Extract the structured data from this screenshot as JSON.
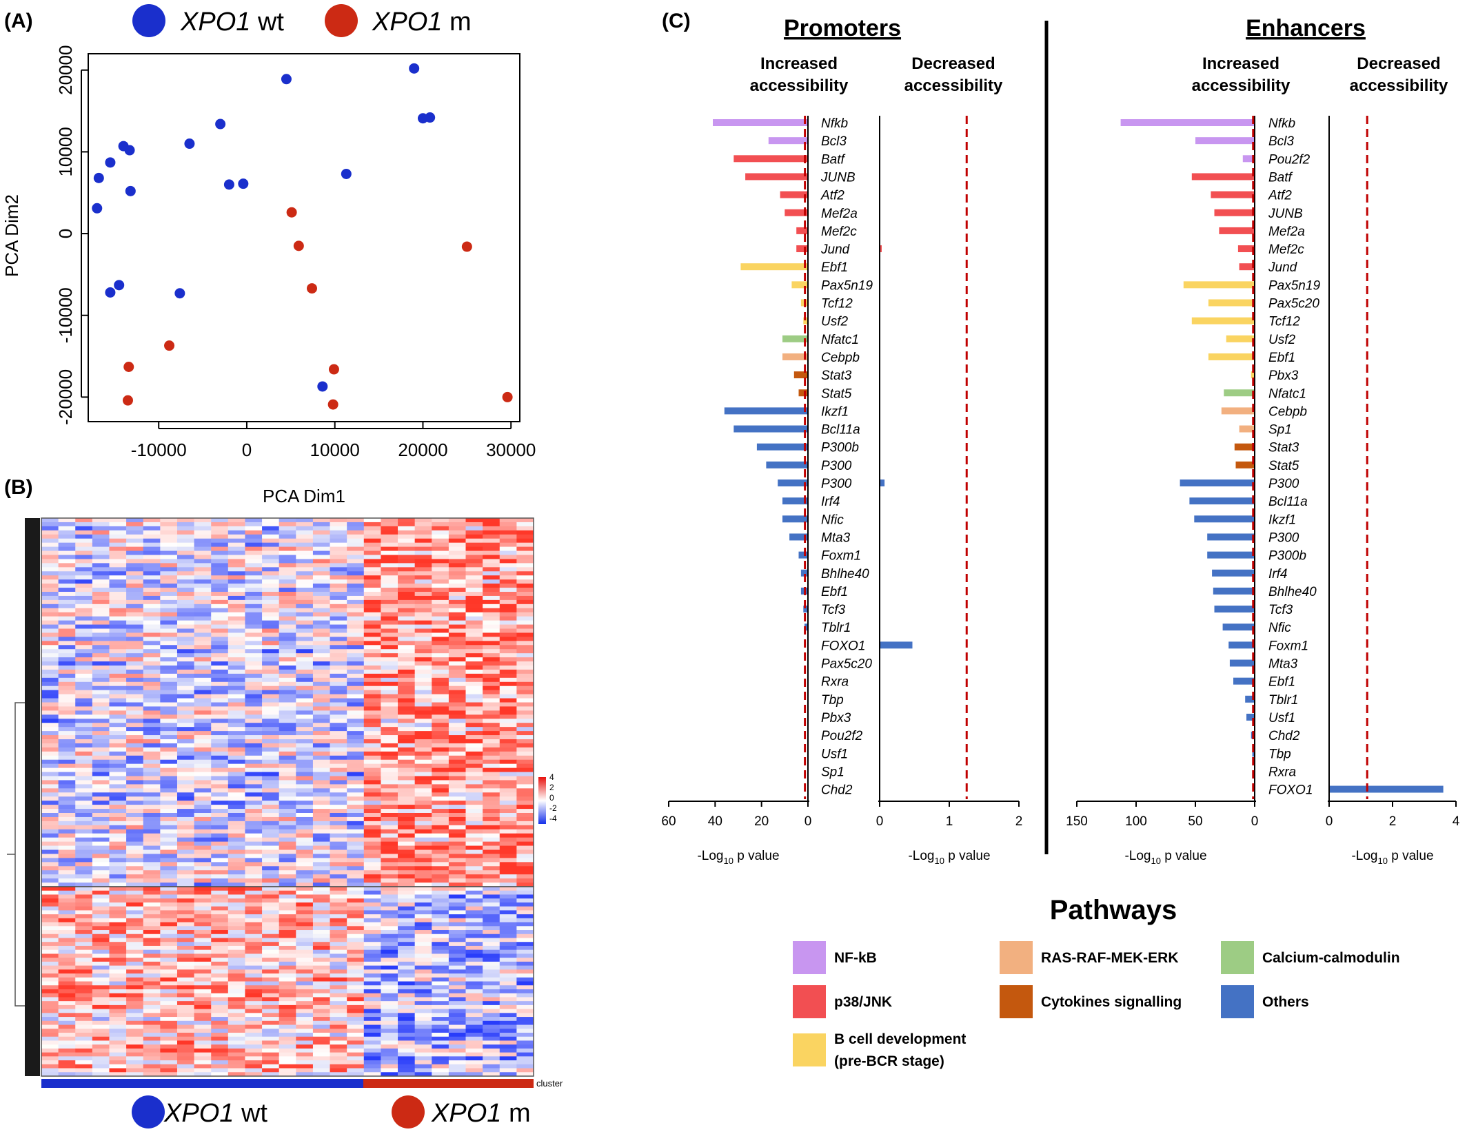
{
  "panels": {
    "a": "(A)",
    "b": "(B)",
    "c": "(C)"
  },
  "groups": {
    "wt": {
      "gene": "XPO1",
      "suffix": " wt",
      "color": "#1a2fcc"
    },
    "m": {
      "gene": "XPO1",
      "suffix": " m",
      "color": "#cc2a14"
    }
  },
  "pca": {
    "xlabel": "PCA Dim1",
    "ylabel": "PCA Dim2",
    "xticks": [
      -10000,
      0,
      10000,
      20000,
      30000
    ],
    "yticks": [
      -20000,
      -10000,
      0,
      10000,
      20000
    ]
  },
  "heatmap": {
    "scale_ticks": [
      "4",
      "2",
      "0",
      "-2",
      "-4"
    ],
    "cluster_label": "cluster"
  },
  "c_axis_label": "-Log",
  "c_axis_sub": "10",
  "c_axis_label_tail": " p value",
  "c_headers": {
    "increased": [
      "Increased",
      "accessibility"
    ],
    "decreased": [
      "Decreased",
      "accessibility"
    ]
  },
  "legend": {
    "title": "Pathways",
    "items": [
      {
        "key": "nfkb",
        "label": "NF-kB",
        "color": "#c896f0"
      },
      {
        "key": "ras",
        "label": "RAS-RAF-MEK-ERK",
        "color": "#f2b080"
      },
      {
        "key": "calcium",
        "label": "Calcium-calmodulin",
        "color": "#9dcc84"
      },
      {
        "key": "p38",
        "label": "p38/JNK",
        "color": "#f24f52"
      },
      {
        "key": "cyt",
        "label": "Cytokines signalling",
        "color": "#c4580e"
      },
      {
        "key": "others",
        "label": "Others",
        "color": "#4472c4"
      },
      {
        "key": "bcell",
        "label": "B cell development",
        "label2": "(pre-BCR stage)",
        "color": "#fad461"
      }
    ]
  },
  "chart_data": [
    {
      "type": "scatter",
      "panel": "A",
      "xlabel": "PCA Dim1",
      "ylabel": "PCA Dim2",
      "xlim": [
        -18000,
        31000
      ],
      "ylim": [
        -23000,
        22000
      ],
      "series": [
        {
          "name": "XPO1 wt",
          "points": [
            [
              -16800,
              6800
            ],
            [
              -17000,
              3100
            ],
            [
              -15500,
              8700
            ],
            [
              -14000,
              10700
            ],
            [
              -13300,
              10200
            ],
            [
              -13200,
              5200
            ],
            [
              -6500,
              11000
            ],
            [
              -3000,
              13400
            ],
            [
              -2000,
              6000
            ],
            [
              -400,
              6100
            ],
            [
              4500,
              18900
            ],
            [
              11300,
              7300
            ],
            [
              19000,
              20200
            ],
            [
              20000,
              14100
            ],
            [
              20800,
              14200
            ],
            [
              -15500,
              -7200
            ],
            [
              -14500,
              -6300
            ],
            [
              -7600,
              -7300
            ],
            [
              8600,
              -18700
            ]
          ]
        },
        {
          "name": "XPO1 m",
          "points": [
            [
              5100,
              2600
            ],
            [
              5900,
              -1500
            ],
            [
              7400,
              -6700
            ],
            [
              25000,
              -1600
            ],
            [
              -8800,
              -13700
            ],
            [
              -13400,
              -16300
            ],
            [
              9900,
              -16600
            ],
            [
              -13500,
              -20400
            ],
            [
              9800,
              -20900
            ],
            [
              29600,
              -20000
            ]
          ]
        }
      ]
    },
    {
      "type": "heatmap",
      "panel": "B",
      "scale": [
        -4,
        4
      ],
      "columns": {
        "XPO1 wt": 19,
        "XPO1 m": 10
      },
      "clusters": 2
    },
    {
      "type": "bar",
      "panel": "C",
      "title": "Promoters",
      "categories": [
        "Nfkb",
        "Bcl3",
        "Batf",
        "JUNB",
        "Atf2",
        "Mef2a",
        "Mef2c",
        "Jund",
        "Ebf1",
        "Pax5n19",
        "Tcf12",
        "Usf2",
        "Nfatc1",
        "Cebpb",
        "Stat3",
        "Stat5",
        "Ikzf1",
        "Bcl11a",
        "P300b",
        "P300",
        "P300",
        "Irf4",
        "Nfic",
        "Mta3",
        "Foxm1",
        "Bhlhe40",
        "Ebf1",
        "Tcf3",
        "Tblr1",
        "FOXO1",
        "Pax5c20",
        "Rxra",
        "Tbp",
        "Pbx3",
        "Pou2f2",
        "Usf1",
        "Sp1",
        "Chd2"
      ],
      "pathway": [
        "nfkb",
        "nfkb",
        "p38",
        "p38",
        "p38",
        "p38",
        "p38",
        "p38",
        "bcell",
        "bcell",
        "bcell",
        "bcell",
        "calcium",
        "ras",
        "cyt",
        "cyt",
        "others",
        "others",
        "others",
        "others",
        "others",
        "others",
        "others",
        "others",
        "others",
        "others",
        "others",
        "others",
        "others",
        "others",
        "bcell",
        "others",
        "others",
        "others",
        "nfkb",
        "others",
        "others",
        "others"
      ],
      "increased": [
        41,
        17,
        32,
        27,
        12,
        10,
        5,
        5,
        29,
        7,
        3,
        2,
        11,
        11,
        6,
        4,
        36,
        32,
        22,
        18,
        13,
        11,
        11,
        8,
        4,
        3,
        3,
        2,
        1.5,
        0,
        0,
        0,
        0,
        0,
        0,
        0,
        0,
        0
      ],
      "decreased": [
        0,
        0,
        0,
        0,
        0,
        0,
        0,
        0.03,
        0,
        0,
        0,
        0,
        0,
        0,
        0,
        0,
        0,
        0,
        0,
        0,
        0.07,
        0,
        0,
        0,
        0,
        0,
        0,
        0,
        0,
        0.47,
        0,
        0,
        0,
        0,
        0,
        0,
        0,
        0
      ],
      "increased_xlim": [
        0,
        60
      ],
      "increased_xticks": [
        60,
        40,
        20,
        0
      ],
      "decreased_xlim": [
        0,
        2
      ],
      "decreased_xticks": [
        0,
        1,
        2
      ],
      "threshold_increased": 1.3,
      "threshold_decreased": 1.25
    },
    {
      "type": "bar",
      "panel": "C",
      "title": "Enhancers",
      "categories": [
        "Nfkb",
        "Bcl3",
        "Pou2f2",
        "Batf",
        "Atf2",
        "JUNB",
        "Mef2a",
        "Mef2c",
        "Jund",
        "Pax5n19",
        "Pax5c20",
        "Tcf12",
        "Usf2",
        "Ebf1",
        "Pbx3",
        "Nfatc1",
        "Cebpb",
        "Sp1",
        "Stat3",
        "Stat5",
        "P300",
        "Bcl11a",
        "Ikzf1",
        "P300",
        "P300b",
        "Irf4",
        "Bhlhe40",
        "Tcf3",
        "Nfic",
        "Foxm1",
        "Mta3",
        "Ebf1",
        "Tblr1",
        "Usf1",
        "Chd2",
        "Tbp",
        "Rxra",
        "FOXO1"
      ],
      "pathway": [
        "nfkb",
        "nfkb",
        "nfkb",
        "p38",
        "p38",
        "p38",
        "p38",
        "p38",
        "p38",
        "bcell",
        "bcell",
        "bcell",
        "bcell",
        "bcell",
        "bcell",
        "calcium",
        "ras",
        "ras",
        "cyt",
        "cyt",
        "others",
        "others",
        "others",
        "others",
        "others",
        "others",
        "others",
        "others",
        "others",
        "others",
        "others",
        "others",
        "others",
        "others",
        "others",
        "others",
        "others",
        "others"
      ],
      "increased": [
        113,
        50,
        10,
        53,
        37,
        34,
        30,
        14,
        13,
        60,
        39,
        53,
        24,
        39,
        3,
        26,
        28,
        13,
        17,
        16,
        63,
        55,
        51,
        40,
        40,
        36,
        35,
        34,
        27,
        22,
        21,
        18,
        8,
        7,
        3,
        2,
        0,
        0
      ],
      "decreased": [
        0,
        0,
        0,
        0,
        0,
        0,
        0,
        0,
        0,
        0,
        0,
        0,
        0,
        0,
        0,
        0,
        0,
        0,
        0,
        0,
        0,
        0,
        0,
        0,
        0,
        0,
        0,
        0,
        0,
        0,
        0,
        0,
        0,
        0,
        0,
        0,
        0,
        3.6
      ],
      "increased_xlim": [
        0,
        150
      ],
      "increased_xticks": [
        150,
        100,
        50,
        0
      ],
      "decreased_xlim": [
        0,
        4
      ],
      "decreased_xticks": [
        0,
        2,
        4
      ],
      "threshold_increased": 1.3,
      "threshold_decreased": 1.2
    }
  ]
}
